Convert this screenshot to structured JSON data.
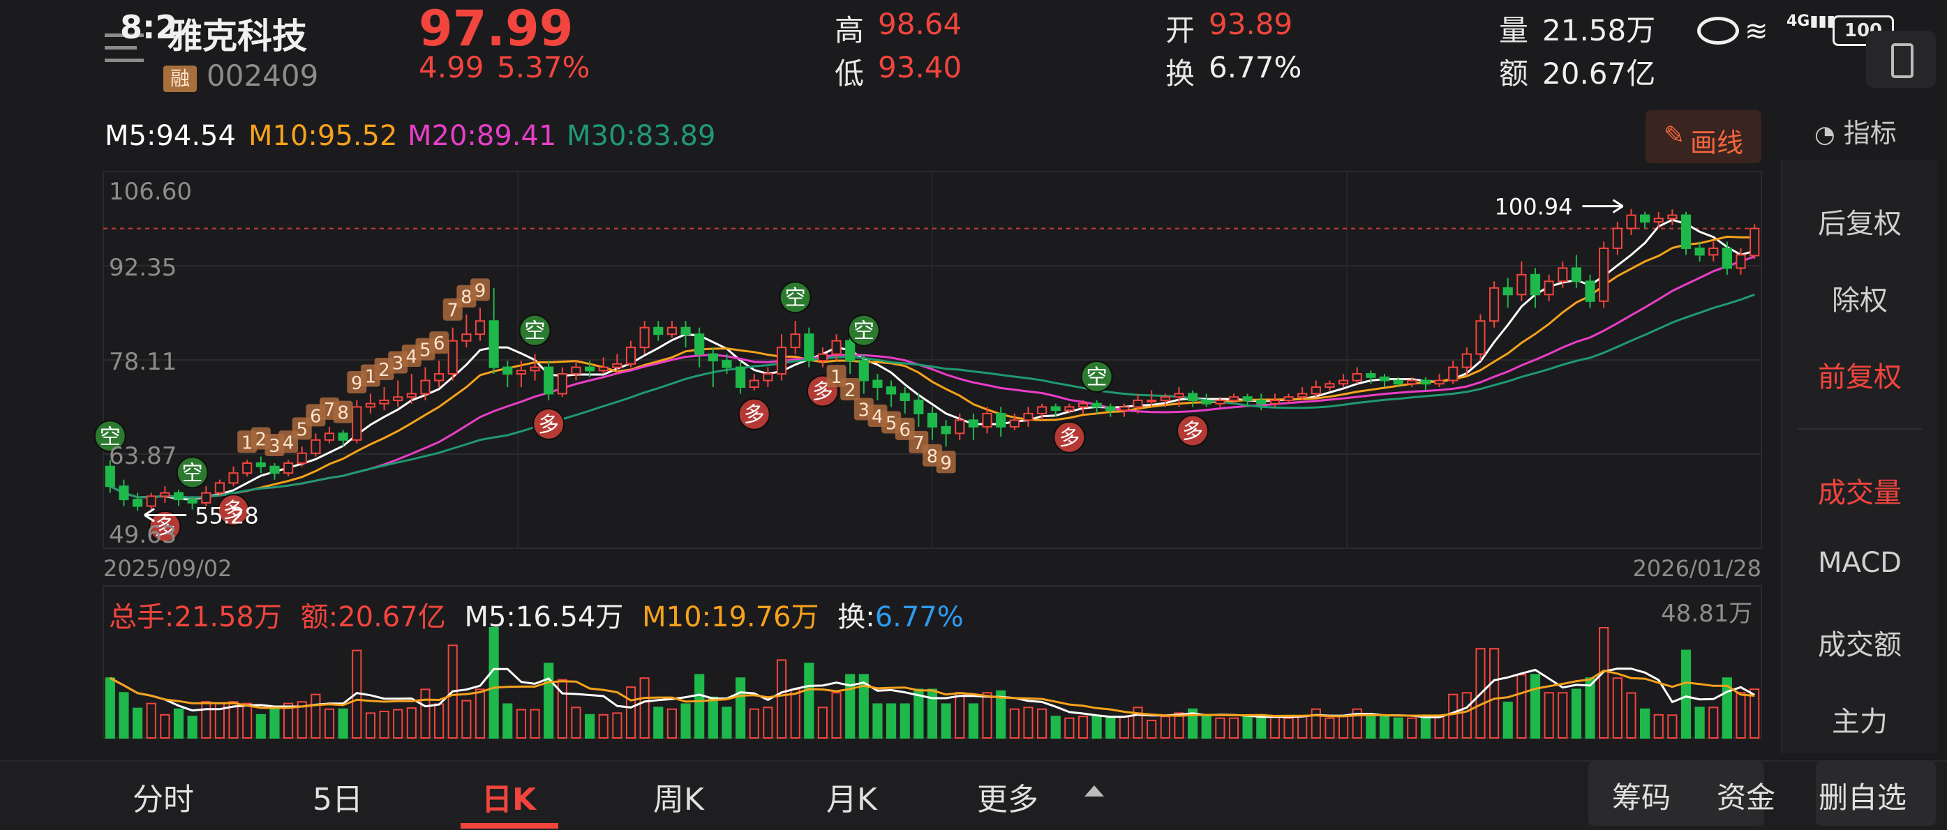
{
  "status": {
    "time": "8:2",
    "battery": "100"
  },
  "stock": {
    "name": "雅克科技",
    "rong_badge": "融",
    "code": "002409",
    "price": "97.99",
    "change": "4.99",
    "change_pct": "5.37%",
    "high_label": "高",
    "high": "98.64",
    "low_label": "低",
    "low": "93.40",
    "open_label": "开",
    "open": "93.89",
    "turnover_label": "换",
    "turnover": "6.77%",
    "volume_label": "量",
    "volume": "21.58万",
    "amount_label": "额",
    "amount": "20.67亿"
  },
  "ma": {
    "m5": "M5:94.54",
    "m10": "M10:95.52",
    "m20": "M20:89.41",
    "m30": "M30:83.89"
  },
  "colors": {
    "up": "#f2453d",
    "down": "#1fb84a",
    "m5": "#ffffff",
    "m10": "#f7a21b",
    "m20": "#e93ec9",
    "m30": "#1f9a72"
  },
  "draw_button": "画线",
  "indicator_label": "指标",
  "right_panel": {
    "items": [
      "后复权",
      "除权",
      "前复权",
      "成交量",
      "MACD",
      "成交额",
      "主力"
    ],
    "active": [
      "前复权",
      "成交量"
    ]
  },
  "chart_data": {
    "type": "candlestick",
    "y_ticks": [
      "106.60",
      "92.35",
      "78.11",
      "63.87",
      "49.63"
    ],
    "ylim": [
      49.63,
      106.6
    ],
    "start_date": "2025/09/02",
    "end_date": "2026/01/28",
    "high_marker": "100.94",
    "low_marker": "55.28",
    "signal_labels": {
      "long": "多",
      "short": "空"
    },
    "count_labels": [
      "1",
      "2",
      "3",
      "4",
      "5",
      "6",
      "7",
      "8",
      "9"
    ],
    "candles": [
      {
        "o": 62,
        "c": 59,
        "h": 63,
        "l": 58
      },
      {
        "o": 59,
        "c": 57,
        "h": 60,
        "l": 56
      },
      {
        "o": 57,
        "c": 56,
        "h": 58,
        "l": 55.28
      },
      {
        "o": 56,
        "c": 57.5,
        "h": 58,
        "l": 55.5
      },
      {
        "o": 57.5,
        "c": 58,
        "h": 59,
        "l": 56.5
      },
      {
        "o": 58,
        "c": 57,
        "h": 58.5,
        "l": 56
      },
      {
        "o": 57,
        "c": 56.5,
        "h": 57.5,
        "l": 55.5
      },
      {
        "o": 56.5,
        "c": 58,
        "h": 59,
        "l": 56
      },
      {
        "o": 58,
        "c": 59.5,
        "h": 60,
        "l": 57.5
      },
      {
        "o": 59.5,
        "c": 61,
        "h": 62,
        "l": 59
      },
      {
        "o": 61,
        "c": 62.5,
        "h": 63,
        "l": 60.5
      },
      {
        "o": 62.5,
        "c": 62,
        "h": 63.5,
        "l": 61
      },
      {
        "o": 62,
        "c": 61,
        "h": 62.5,
        "l": 60
      },
      {
        "o": 61,
        "c": 62.5,
        "h": 63,
        "l": 60.5
      },
      {
        "o": 62.5,
        "c": 64,
        "h": 65,
        "l": 62
      },
      {
        "o": 64,
        "c": 66,
        "h": 67,
        "l": 63.5
      },
      {
        "o": 66,
        "c": 67,
        "h": 68,
        "l": 65.5
      },
      {
        "o": 67,
        "c": 66,
        "h": 67.5,
        "l": 65
      },
      {
        "o": 66,
        "c": 71,
        "h": 72,
        "l": 65.5
      },
      {
        "o": 71,
        "c": 71.5,
        "h": 73,
        "l": 70
      },
      {
        "o": 71.5,
        "c": 72,
        "h": 74,
        "l": 70.5
      },
      {
        "o": 72,
        "c": 72.5,
        "h": 75,
        "l": 71
      },
      {
        "o": 72.5,
        "c": 73,
        "h": 76,
        "l": 71.5
      },
      {
        "o": 73,
        "c": 75,
        "h": 77,
        "l": 72
      },
      {
        "o": 75,
        "c": 76,
        "h": 78,
        "l": 74
      },
      {
        "o": 76,
        "c": 81,
        "h": 83,
        "l": 75
      },
      {
        "o": 81,
        "c": 82,
        "h": 85,
        "l": 80
      },
      {
        "o": 82,
        "c": 84,
        "h": 86,
        "l": 81
      },
      {
        "o": 84,
        "c": 77,
        "h": 89,
        "l": 76
      },
      {
        "o": 77,
        "c": 76,
        "h": 78,
        "l": 74
      },
      {
        "o": 76,
        "c": 76.5,
        "h": 78,
        "l": 74
      },
      {
        "o": 76.5,
        "c": 77,
        "h": 79,
        "l": 75
      },
      {
        "o": 77,
        "c": 73,
        "h": 78,
        "l": 72
      },
      {
        "o": 73,
        "c": 76,
        "h": 77,
        "l": 72.5
      },
      {
        "o": 76,
        "c": 77,
        "h": 78,
        "l": 75
      },
      {
        "o": 77,
        "c": 76.5,
        "h": 78,
        "l": 75.5
      },
      {
        "o": 76.5,
        "c": 77,
        "h": 78.5,
        "l": 76
      },
      {
        "o": 77,
        "c": 77.5,
        "h": 79,
        "l": 76
      },
      {
        "o": 77.5,
        "c": 80,
        "h": 81,
        "l": 77
      },
      {
        "o": 80,
        "c": 83,
        "h": 84,
        "l": 79
      },
      {
        "o": 83,
        "c": 82,
        "h": 84,
        "l": 81
      },
      {
        "o": 82,
        "c": 83,
        "h": 84,
        "l": 81.5
      },
      {
        "o": 83,
        "c": 82,
        "h": 84,
        "l": 80
      },
      {
        "o": 82,
        "c": 79,
        "h": 83,
        "l": 77
      },
      {
        "o": 79,
        "c": 78,
        "h": 80,
        "l": 74
      },
      {
        "o": 78,
        "c": 77,
        "h": 79,
        "l": 76
      },
      {
        "o": 77,
        "c": 74,
        "h": 78,
        "l": 73
      },
      {
        "o": 74,
        "c": 75,
        "h": 76,
        "l": 73.5
      },
      {
        "o": 75,
        "c": 76,
        "h": 77,
        "l": 74
      },
      {
        "o": 76,
        "c": 80,
        "h": 82,
        "l": 75
      },
      {
        "o": 80,
        "c": 82,
        "h": 84,
        "l": 79
      },
      {
        "o": 82,
        "c": 78,
        "h": 83,
        "l": 77
      },
      {
        "o": 78,
        "c": 79,
        "h": 80,
        "l": 77
      },
      {
        "o": 79,
        "c": 81,
        "h": 82,
        "l": 78
      },
      {
        "o": 81,
        "c": 78,
        "h": 82,
        "l": 76
      },
      {
        "o": 78,
        "c": 75,
        "h": 79,
        "l": 73
      },
      {
        "o": 75,
        "c": 74,
        "h": 76,
        "l": 72
      },
      {
        "o": 74,
        "c": 73,
        "h": 75,
        "l": 71
      },
      {
        "o": 73,
        "c": 72,
        "h": 74,
        "l": 70
      },
      {
        "o": 72,
        "c": 70,
        "h": 73,
        "l": 68
      },
      {
        "o": 70,
        "c": 68,
        "h": 71,
        "l": 66
      },
      {
        "o": 68,
        "c": 67,
        "h": 69,
        "l": 65
      },
      {
        "o": 67,
        "c": 69,
        "h": 70,
        "l": 66
      },
      {
        "o": 69,
        "c": 68,
        "h": 70,
        "l": 66
      },
      {
        "o": 68,
        "c": 70,
        "h": 71,
        "l": 67
      },
      {
        "o": 70,
        "c": 68,
        "h": 71,
        "l": 66.5
      },
      {
        "o": 68,
        "c": 69,
        "h": 70,
        "l": 67.5
      },
      {
        "o": 69,
        "c": 70,
        "h": 71,
        "l": 68
      },
      {
        "o": 70,
        "c": 71,
        "h": 71.5,
        "l": 69
      },
      {
        "o": 71,
        "c": 70.5,
        "h": 71.5,
        "l": 69.5
      },
      {
        "o": 70.5,
        "c": 71,
        "h": 71.5,
        "l": 70
      },
      {
        "o": 71,
        "c": 71.5,
        "h": 72,
        "l": 70
      },
      {
        "o": 71.5,
        "c": 71,
        "h": 72,
        "l": 70
      },
      {
        "o": 71,
        "c": 70.5,
        "h": 71.5,
        "l": 69.5
      },
      {
        "o": 70.5,
        "c": 71,
        "h": 71.5,
        "l": 69.5
      },
      {
        "o": 71,
        "c": 72,
        "h": 73,
        "l": 70
      },
      {
        "o": 72,
        "c": 72,
        "h": 73.5,
        "l": 71
      },
      {
        "o": 72,
        "c": 72.5,
        "h": 73,
        "l": 71
      },
      {
        "o": 72.5,
        "c": 73,
        "h": 74,
        "l": 71
      },
      {
        "o": 73,
        "c": 72,
        "h": 73.5,
        "l": 71
      },
      {
        "o": 72,
        "c": 71.5,
        "h": 73,
        "l": 71
      },
      {
        "o": 71.5,
        "c": 72,
        "h": 72.5,
        "l": 71
      },
      {
        "o": 72,
        "c": 72.5,
        "h": 73,
        "l": 71.5
      },
      {
        "o": 72.5,
        "c": 72,
        "h": 73,
        "l": 71
      },
      {
        "o": 72,
        "c": 71.5,
        "h": 73,
        "l": 70.5
      },
      {
        "o": 71.5,
        "c": 72,
        "h": 73,
        "l": 71
      },
      {
        "o": 72,
        "c": 72.5,
        "h": 73,
        "l": 71.5
      },
      {
        "o": 72.5,
        "c": 73,
        "h": 74,
        "l": 72
      },
      {
        "o": 73,
        "c": 74,
        "h": 75,
        "l": 72.5
      },
      {
        "o": 74,
        "c": 74.5,
        "h": 75,
        "l": 73.5
      },
      {
        "o": 74.5,
        "c": 75,
        "h": 76,
        "l": 74
      },
      {
        "o": 75,
        "c": 76,
        "h": 77,
        "l": 74.5
      },
      {
        "o": 76,
        "c": 75.5,
        "h": 76.5,
        "l": 74.5
      },
      {
        "o": 75.5,
        "c": 75,
        "h": 76,
        "l": 74
      },
      {
        "o": 75,
        "c": 74.5,
        "h": 75.5,
        "l": 74
      },
      {
        "o": 74.5,
        "c": 75,
        "h": 75.5,
        "l": 74
      },
      {
        "o": 75,
        "c": 74.5,
        "h": 75.5,
        "l": 73.5
      },
      {
        "o": 74.5,
        "c": 75,
        "h": 76,
        "l": 74
      },
      {
        "o": 75,
        "c": 77,
        "h": 78,
        "l": 74.5
      },
      {
        "o": 77,
        "c": 79,
        "h": 80,
        "l": 76
      },
      {
        "o": 79,
        "c": 84,
        "h": 85,
        "l": 78
      },
      {
        "o": 84,
        "c": 89,
        "h": 90,
        "l": 83
      },
      {
        "o": 89,
        "c": 88,
        "h": 90.5,
        "l": 86
      },
      {
        "o": 88,
        "c": 91,
        "h": 93,
        "l": 87
      },
      {
        "o": 91,
        "c": 88,
        "h": 92,
        "l": 86
      },
      {
        "o": 88,
        "c": 90,
        "h": 91,
        "l": 87
      },
      {
        "o": 90,
        "c": 92,
        "h": 93,
        "l": 89
      },
      {
        "o": 92,
        "c": 90,
        "h": 94,
        "l": 89
      },
      {
        "o": 90,
        "c": 87,
        "h": 91,
        "l": 86
      },
      {
        "o": 87,
        "c": 95,
        "h": 96,
        "l": 86
      },
      {
        "o": 95,
        "c": 98,
        "h": 99,
        "l": 94
      },
      {
        "o": 98,
        "c": 100,
        "h": 100.94,
        "l": 97
      },
      {
        "o": 100,
        "c": 99,
        "h": 100.5,
        "l": 98
      },
      {
        "o": 99,
        "c": 99.5,
        "h": 100.5,
        "l": 98
      },
      {
        "o": 99.5,
        "c": 100,
        "h": 100.9,
        "l": 98.5
      },
      {
        "o": 100,
        "c": 95,
        "h": 100.5,
        "l": 94
      },
      {
        "o": 95,
        "c": 94,
        "h": 96,
        "l": 93
      },
      {
        "o": 94,
        "c": 95,
        "h": 96,
        "l": 93
      },
      {
        "o": 95,
        "c": 92,
        "h": 96,
        "l": 91
      },
      {
        "o": 92,
        "c": 94,
        "h": 95,
        "l": 91
      },
      {
        "o": 93.89,
        "c": 97.99,
        "h": 98.64,
        "l": 93.4
      }
    ],
    "volume": {
      "total": "总手:21.58万",
      "amount": "额:20.67亿",
      "m5": "M5:16.54万",
      "m10": "M10:19.76万",
      "turnover_label": "换:",
      "turnover": "6.77%",
      "max_label": "48.81万",
      "max": 48.81
    }
  },
  "tabs": {
    "items": [
      "分时",
      "5日",
      "日K",
      "周K",
      "月K",
      "更多"
    ],
    "active": "日K"
  },
  "bottom_buttons": {
    "chips": "筹码",
    "funds": "资金",
    "remove": "删自选"
  }
}
